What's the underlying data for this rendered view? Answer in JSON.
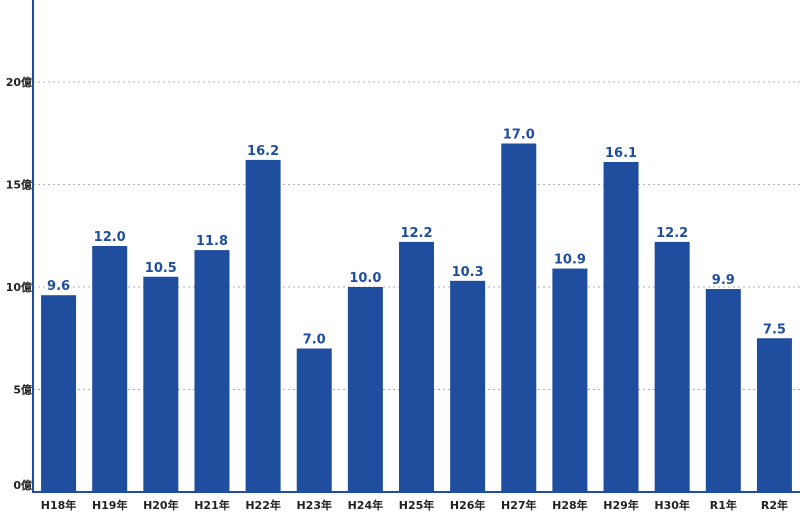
{
  "chart_data": {
    "type": "bar",
    "categories": [
      "H18年",
      "H19年",
      "H20年",
      "H21年",
      "H22年",
      "H23年",
      "H24年",
      "H25年",
      "H26年",
      "H27年",
      "H28年",
      "H29年",
      "H30年",
      "R1年",
      "R2年"
    ],
    "values": [
      9.6,
      12.0,
      10.5,
      11.8,
      16.2,
      7.0,
      10.0,
      12.2,
      10.3,
      17.0,
      10.9,
      16.1,
      12.2,
      9.9,
      7.5
    ],
    "value_labels": [
      "9.6",
      "12.0",
      "10.5",
      "11.8",
      "16.2",
      "7.0",
      "10.0",
      "12.2",
      "10.3",
      "17.0",
      "10.9",
      "16.1",
      "12.2",
      "9.9",
      "7.5"
    ],
    "yticks": [
      0,
      5,
      10,
      15,
      20
    ],
    "ytick_labels": [
      "0億",
      "5億",
      "10億",
      "15億",
      "20億"
    ],
    "ylim": [
      0,
      24
    ],
    "grid": true,
    "grid_style": "dotted",
    "bar_color": "#1f4e9f",
    "label_color": "#1f4e9f",
    "axis_color": "#1f4e9f",
    "grid_color": "#b0b0b0"
  }
}
